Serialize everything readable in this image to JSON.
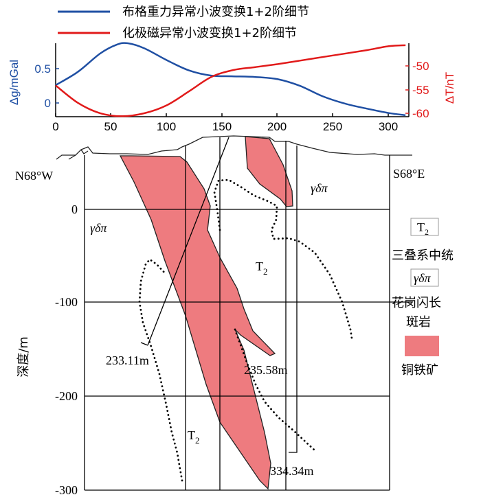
{
  "chart_data": {
    "type": "line",
    "legend": [
      {
        "name": "布格重力异常小波变换1+2阶细节",
        "color": "#1f4fa3"
      },
      {
        "name": "化极磁异常小波变换1+2阶细节",
        "color": "#e11a1a"
      }
    ],
    "x": {
      "ticks": [
        "0",
        "50",
        "100",
        "150",
        "200",
        "250",
        "300"
      ],
      "range": [
        0,
        318
      ]
    },
    "y_left": {
      "label": "Δg/mGal",
      "ticks": [
        "0.5",
        "0"
      ],
      "range": [
        -0.15,
        0.85
      ],
      "color": "#1f4fa3"
    },
    "y_right": {
      "label": "ΔT/nT",
      "ticks": [
        "-50",
        "-55",
        "-60"
      ],
      "range": [
        -60.3,
        -45.5
      ],
      "color": "#e11a1a"
    },
    "series": [
      {
        "name": "布格重力异常小波变换1+2阶细节",
        "points": [
          [
            0,
            0.28
          ],
          [
            20,
            0.46
          ],
          [
            40,
            0.71
          ],
          [
            55,
            0.83
          ],
          [
            65,
            0.85
          ],
          [
            80,
            0.78
          ],
          [
            100,
            0.62
          ],
          [
            120,
            0.48
          ],
          [
            140,
            0.41
          ],
          [
            160,
            0.4
          ],
          [
            180,
            0.39
          ],
          [
            200,
            0.36
          ],
          [
            220,
            0.27
          ],
          [
            240,
            0.13
          ],
          [
            260,
            0.03
          ],
          [
            280,
            -0.04
          ],
          [
            300,
            -0.1
          ],
          [
            315,
            -0.13
          ]
        ]
      },
      {
        "name": "化极磁异常小波变换1+2阶细节",
        "points": [
          [
            0,
            -54.0
          ],
          [
            20,
            -57.5
          ],
          [
            40,
            -59.6
          ],
          [
            60,
            -60.2
          ],
          [
            80,
            -59.6
          ],
          [
            100,
            -58.0
          ],
          [
            120,
            -55.2
          ],
          [
            140,
            -52.3
          ],
          [
            160,
            -50.9
          ],
          [
            180,
            -50.3
          ],
          [
            200,
            -49.7
          ],
          [
            220,
            -49.0
          ],
          [
            240,
            -48.3
          ],
          [
            260,
            -47.6
          ],
          [
            280,
            -46.9
          ],
          [
            300,
            -46.1
          ],
          [
            315,
            -45.9
          ]
        ]
      }
    ]
  },
  "section": {
    "left_direction": "N68°W",
    "right_direction": "S68°E",
    "depth_label": "深度/m",
    "depth_ticks": [
      "0",
      "-100",
      "-200",
      "-300"
    ],
    "unit_labels": [
      {
        "text": "γδπ",
        "id": "granite-left"
      },
      {
        "text": "γδπ",
        "id": "granite-right"
      },
      {
        "text": "T",
        "sub": "2",
        "id": "t2-mid"
      },
      {
        "text": "T",
        "sub": "2",
        "id": "t2-bottom"
      }
    ],
    "borehole_depths": [
      "233.11m",
      "235.58m",
      "334.34m"
    ],
    "legend": [
      {
        "symbol": "T",
        "symbol_sub": "2",
        "text": "三叠系中统"
      },
      {
        "symbol": "γδπ",
        "text_line1": "花岗闪长",
        "text_line2": "斑岩"
      },
      {
        "symbol": "",
        "text": "铜铁矿",
        "color": "#ee7b7f"
      }
    ]
  }
}
